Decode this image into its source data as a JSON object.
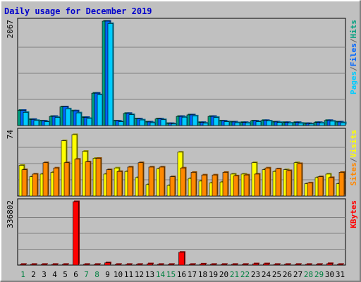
{
  "chart_data": {
    "type": "bar",
    "title": "Daily usage for December 2019",
    "categories": [
      "1",
      "2",
      "3",
      "4",
      "5",
      "6",
      "7",
      "8",
      "9",
      "10",
      "11",
      "12",
      "13",
      "14",
      "15",
      "16",
      "17",
      "18",
      "19",
      "20",
      "21",
      "22",
      "23",
      "24",
      "25",
      "26",
      "27",
      "28",
      "29",
      "30",
      "31"
    ],
    "weekend_days": [
      "1",
      "7",
      "8",
      "14",
      "15",
      "21",
      "22",
      "28",
      "29"
    ],
    "panels": [
      {
        "id": "top",
        "ymax_label": "2067",
        "ylim": [
          0,
          2067
        ],
        "legend": [
          "Pages",
          "/",
          "Files",
          "/",
          "Hits"
        ],
        "legend_colors": [
          "#00ccff",
          "#606060",
          "#0066ff",
          "#606060",
          "#00a080"
        ],
        "series": [
          {
            "name": "Hits",
            "color": "#00a080",
            "values": [
              300,
              120,
              90,
              180,
              370,
              290,
              160,
              640,
              2067,
              90,
              240,
              130,
              70,
              130,
              40,
              180,
              210,
              60,
              180,
              90,
              70,
              60,
              90,
              100,
              70,
              60,
              60,
              40,
              60,
              100,
              70
            ]
          },
          {
            "name": "Files",
            "color": "#0066ff",
            "values": [
              300,
              120,
              90,
              180,
              370,
              290,
              160,
              640,
              2067,
              90,
              240,
              130,
              70,
              130,
              40,
              180,
              210,
              60,
              180,
              90,
              70,
              60,
              90,
              100,
              70,
              60,
              60,
              40,
              60,
              100,
              70
            ]
          },
          {
            "name": "Pages",
            "color": "#00ccff",
            "values": [
              260,
              100,
              75,
              160,
              330,
              250,
              140,
              610,
              2020,
              75,
              215,
              110,
              55,
              115,
              30,
              165,
              190,
              45,
              160,
              75,
              55,
              50,
              75,
              90,
              60,
              50,
              45,
              30,
              50,
              85,
              55
            ]
          }
        ]
      },
      {
        "id": "middle",
        "ymax_label": "74",
        "ylim": [
          0,
          74
        ],
        "legend": [
          "Sites",
          "/",
          "Visits"
        ],
        "legend_colors": [
          "#ff8800",
          "#606060",
          "#ffff00"
        ],
        "series": [
          {
            "name": "Visits",
            "color": "#ffff00",
            "values": [
              35,
              22,
              25,
              27,
              63,
              70,
              51,
              43,
              25,
              32,
              28,
              21,
              13,
              31,
              12,
              50,
              20,
              17,
              15,
              16,
              25,
              25,
              38,
              30,
              28,
              30,
              38,
              14,
              21,
              25,
              14
            ]
          },
          {
            "name": "Sites",
            "color": "#ff8800",
            "values": [
              30,
              25,
              38,
              32,
              38,
              42,
              39,
              43,
              30,
              28,
              33,
              38,
              33,
              33,
              22,
              32,
              27,
              24,
              24,
              27,
              23,
              24,
              25,
              32,
              31,
              29,
              37,
              15,
              22,
              21,
              27
            ]
          }
        ]
      },
      {
        "id": "bottom",
        "ymax_label": "336802",
        "ylim": [
          0,
          336802
        ],
        "legend": [
          "KBytes"
        ],
        "legend_colors": [
          "#ff0000"
        ],
        "series": [
          {
            "name": "KBytes",
            "color": "#ff0000",
            "values": [
              4000,
              4000,
              4000,
              4000,
              4000,
              336802,
              4000,
              4000,
              12000,
              4000,
              4000,
              4000,
              7000,
              4000,
              4000,
              68000,
              4000,
              6000,
              4000,
              4000,
              4000,
              4000,
              7000,
              7000,
              4000,
              4000,
              4000,
              4000,
              4000,
              8000,
              4000
            ]
          }
        ]
      }
    ],
    "grid": true
  }
}
